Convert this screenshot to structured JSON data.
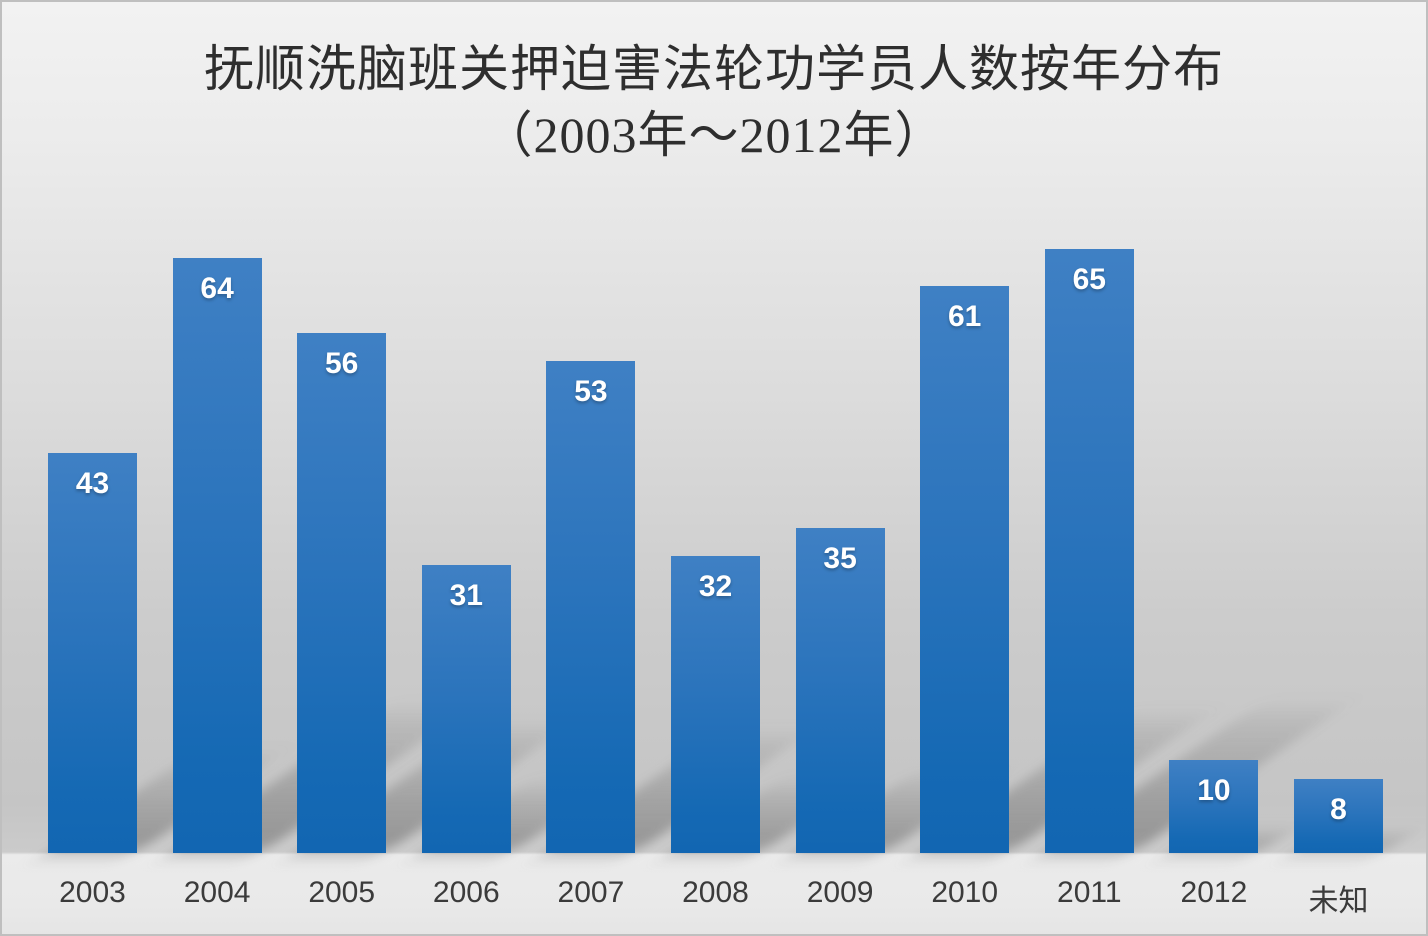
{
  "title": {
    "line1": "抚顺洗脑班关押迫害法轮功学员人数按年分布",
    "line2": "（2003年～2012年）"
  },
  "chart_data": {
    "type": "bar",
    "title": "抚顺洗脑班关押迫害法轮功学员人数按年分布（2003年～2012年）",
    "categories": [
      "2003",
      "2004",
      "2005",
      "2006",
      "2007",
      "2008",
      "2009",
      "2010",
      "2011",
      "2012",
      "未知"
    ],
    "values": [
      43,
      64,
      56,
      31,
      53,
      32,
      35,
      61,
      65,
      10,
      8
    ],
    "series": [
      {
        "name": "人数",
        "values": [
          43,
          64,
          56,
          31,
          53,
          32,
          35,
          61,
          65,
          10,
          8
        ]
      }
    ],
    "xlabel": "",
    "ylabel": "",
    "ylim": [
      0,
      66
    ],
    "grid": false,
    "legend": "none",
    "value_labels_shown": true,
    "colors": {
      "bar_top": "#3f80c4",
      "bar_bottom": "#1266b2",
      "value_label": "#ffffff",
      "axis_label": "#3b3b3b",
      "title_text": "#2e2e2e",
      "background_top": "#f2f2f2",
      "background_bottom": "#c5c5c5",
      "label_strip": "#e9e9e9",
      "border": "#bfbfbf"
    }
  }
}
